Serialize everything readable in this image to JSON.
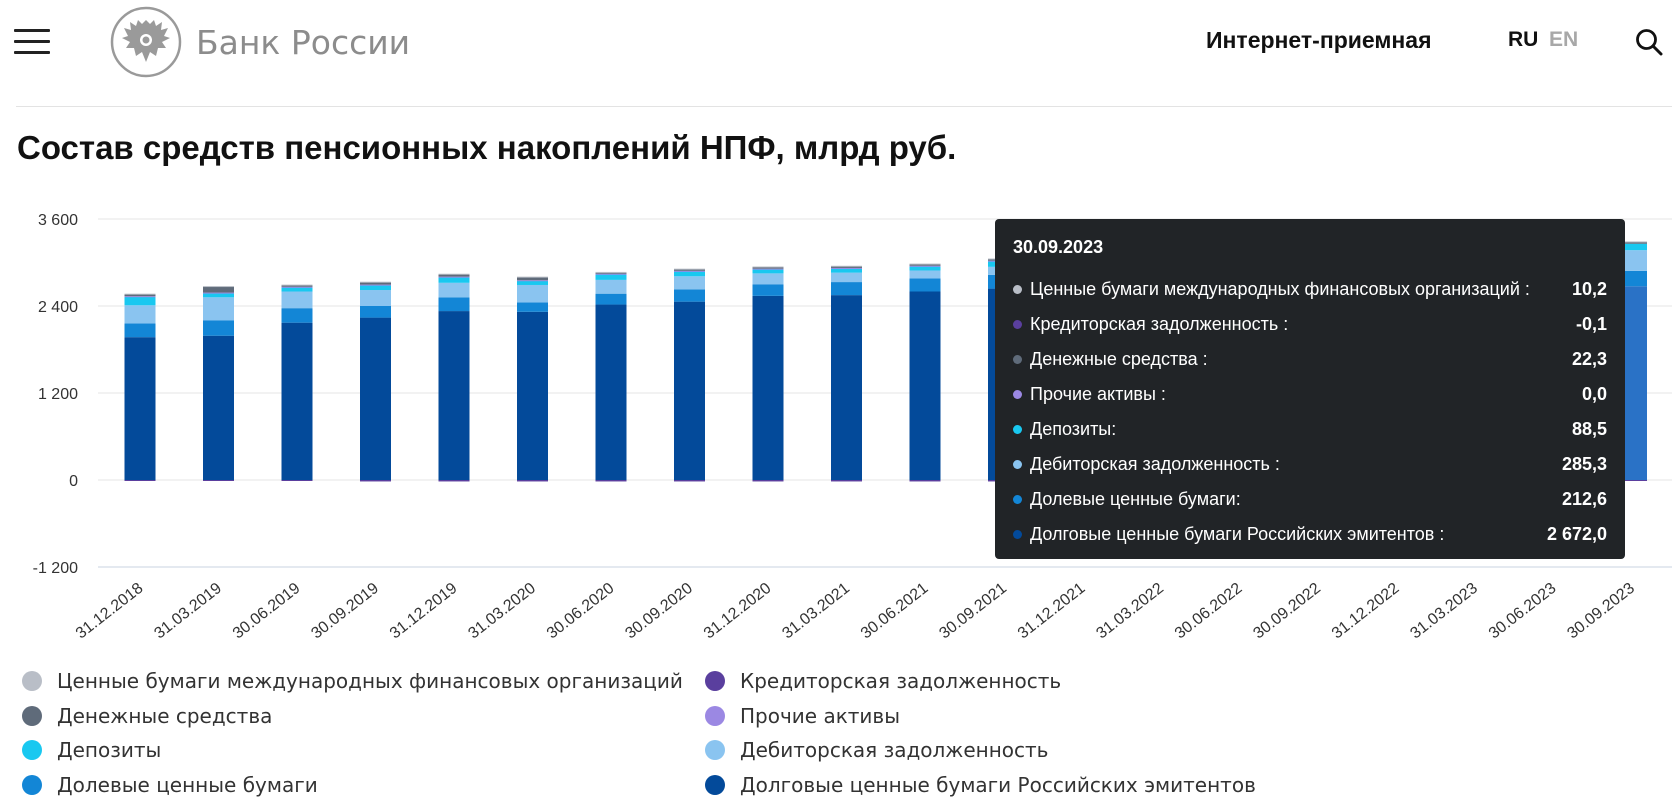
{
  "header": {
    "logo_text": "Банк России",
    "internet_reception": "Интернет-приемная",
    "lang_ru": "RU",
    "lang_en": "EN"
  },
  "page_title": "Состав средств пенсионных накоплений НПФ, млрд руб.",
  "colors": {
    "intl": "#b9bec7",
    "payables": "#5a3f9e",
    "cash": "#5f6b7a",
    "other": "#9b88e3",
    "deposits": "#19c8f0",
    "receivables": "#8ac4f0",
    "equity": "#1386d6",
    "debt": "#034a9a",
    "debt_highlight": "#2a72c6"
  },
  "chart_data": {
    "type": "bar",
    "stacked": true,
    "title": "Состав средств пенсионных накоплений НПФ, млрд руб.",
    "ylim": [
      -1200,
      3600
    ],
    "yticks": [
      3600,
      2400,
      1200,
      0,
      -1200
    ],
    "ytick_labels": [
      "3 600",
      "2 400",
      "1 200",
      "0",
      "-1 200"
    ],
    "grid": true,
    "legend_position": "bottom",
    "categories": [
      "31.12.2018",
      "31.03.2019",
      "30.06.2019",
      "30.09.2019",
      "31.12.2019",
      "31.03.2020",
      "30.06.2020",
      "30.09.2020",
      "31.12.2020",
      "31.03.2021",
      "30.06.2021",
      "30.09.2021",
      "31.12.2021",
      "31.03.2022",
      "30.06.2022",
      "30.09.2022",
      "31.12.2022",
      "31.03.2023",
      "30.06.2023",
      "30.09.2023"
    ],
    "series": [
      {
        "name": "Долговые ценные бумаги Российских эмитентов",
        "key": "debt",
        "values": [
          1970,
          1990,
          2170,
          2240,
          2330,
          2320,
          2420,
          2460,
          2540,
          2550,
          2600,
          2640,
          null,
          null,
          null,
          null,
          null,
          null,
          null,
          2672.0
        ]
      },
      {
        "name": "Долевые ценные бумаги",
        "key": "equity",
        "values": [
          190,
          210,
          200,
          160,
          190,
          130,
          150,
          170,
          160,
          180,
          180,
          190,
          null,
          null,
          null,
          null,
          null,
          null,
          null,
          212.6
        ]
      },
      {
        "name": "Дебиторская задолженность",
        "key": "receivables",
        "values": [
          250,
          320,
          230,
          220,
          200,
          240,
          190,
          180,
          150,
          130,
          110,
          110,
          null,
          null,
          null,
          null,
          null,
          null,
          null,
          285.3
        ]
      },
      {
        "name": "Депозиты",
        "key": "deposits",
        "values": [
          120,
          60,
          60,
          70,
          80,
          60,
          80,
          70,
          60,
          60,
          60,
          80,
          null,
          null,
          null,
          null,
          null,
          null,
          null,
          88.5
        ]
      },
      {
        "name": "Прочие активы",
        "key": "other",
        "values": [
          5,
          5,
          5,
          5,
          5,
          5,
          5,
          5,
          5,
          5,
          5,
          5,
          null,
          null,
          null,
          null,
          null,
          null,
          null,
          0.0
        ]
      },
      {
        "name": "Денежные средства",
        "key": "cash",
        "values": [
          25,
          80,
          20,
          30,
          30,
          40,
          15,
          20,
          20,
          20,
          20,
          20,
          null,
          null,
          null,
          null,
          null,
          null,
          null,
          22.3
        ]
      },
      {
        "name": "Кредиторская задолженность",
        "key": "payables",
        "values": [
          -10,
          -10,
          -10,
          -20,
          -20,
          -20,
          -20,
          -20,
          -20,
          -20,
          -20,
          -20,
          null,
          null,
          null,
          null,
          null,
          null,
          null,
          -0.1
        ]
      },
      {
        "name": "Ценные бумаги международных финансовых организаций",
        "key": "intl",
        "values": [
          10,
          10,
          10,
          10,
          10,
          10,
          10,
          10,
          10,
          10,
          10,
          10,
          null,
          null,
          null,
          null,
          null,
          null,
          null,
          10.2
        ]
      }
    ]
  },
  "tooltip": {
    "date": "30.09.2023",
    "rows": [
      {
        "label": "Ценные бумаги международных финансовых организаций :",
        "value": "10,2",
        "key": "intl"
      },
      {
        "label": "Кредиторская задолженность :",
        "value": "-0,1",
        "key": "payables"
      },
      {
        "label": "Денежные средства :",
        "value": "22,3",
        "key": "cash"
      },
      {
        "label": "Прочие активы :",
        "value": "0,0",
        "key": "other"
      },
      {
        "label": "Депозиты:",
        "value": "88,5",
        "key": "deposits"
      },
      {
        "label": "Дебиторская задолженность :",
        "value": "285,3",
        "key": "receivables"
      },
      {
        "label": "Долевые ценные бумаги:",
        "value": "212,6",
        "key": "equity"
      },
      {
        "label": "Долговые ценные бумаги Российских эмитентов :",
        "value": "2 672,0",
        "key": "debt"
      }
    ]
  },
  "legend": {
    "items": [
      {
        "label": "Ценные бумаги международных финансовых организаций",
        "key": "intl"
      },
      {
        "label": "Кредиторская задолженность",
        "key": "payables"
      },
      {
        "label": "Денежные средства",
        "key": "cash"
      },
      {
        "label": "Прочие активы",
        "key": "other"
      },
      {
        "label": "Депозиты",
        "key": "deposits"
      },
      {
        "label": "Дебиторская задолженность",
        "key": "receivables"
      },
      {
        "label": "Долевые ценные бумаги",
        "key": "equity"
      },
      {
        "label": "Долговые ценные бумаги Российских эмитентов",
        "key": "debt"
      }
    ]
  }
}
